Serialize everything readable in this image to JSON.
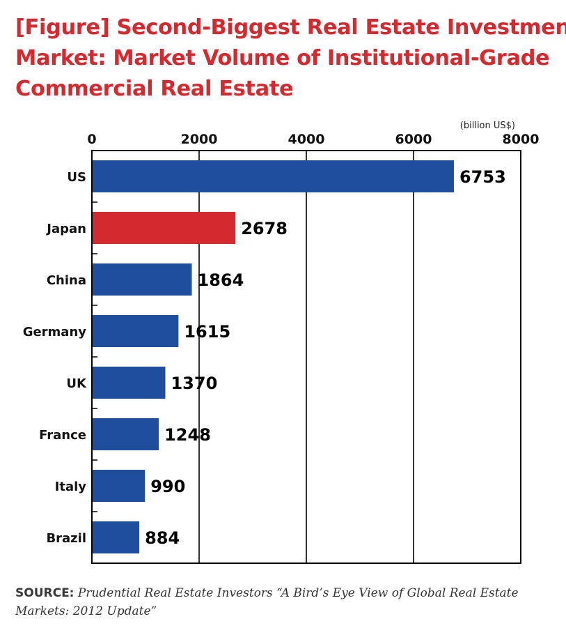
{
  "title_lines": [
    "[Figure] Second-Biggest Real Estate Investment",
    "Market: Market Volume of Institutional-Grade",
    "Commercial Real Estate"
  ],
  "source": {
    "label": "SOURCE:",
    "text": "Prudential Real Estate Investors “A Bird’s Eye View of Global Real Estate Markets: 2012 Update”"
  },
  "colors": {
    "default_bar": "#1f4e9c",
    "highlight_bar": "#d42a2f",
    "title": "#d42a2f"
  },
  "chart_data": {
    "type": "bar",
    "orientation": "horizontal",
    "title": "[Figure] Second-Biggest Real Estate Investment Market: Market Volume of Institutional-Grade Commercial Real Estate",
    "unit": "(billion US$)",
    "categories": [
      "US",
      "Japan",
      "China",
      "Germany",
      "UK",
      "France",
      "Italy",
      "Brazil"
    ],
    "values": [
      6753,
      2678,
      1864,
      1615,
      1370,
      1248,
      990,
      884
    ],
    "highlight": "Japan",
    "xlim": [
      0,
      8000
    ],
    "xticks": [
      0,
      2000,
      4000,
      6000,
      8000
    ],
    "axis_position": "top",
    "grid": true,
    "data_labels": true,
    "legend": "none"
  }
}
